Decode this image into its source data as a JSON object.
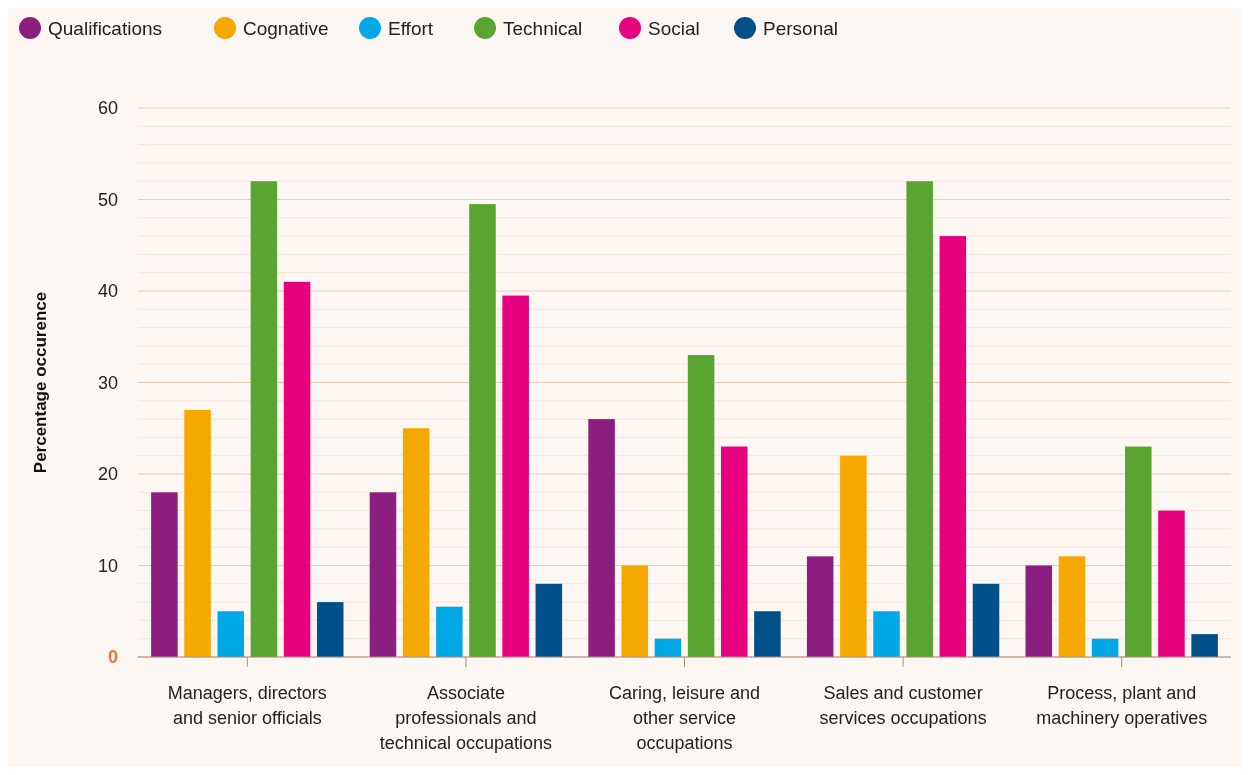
{
  "chart_data": {
    "type": "bar",
    "ylabel": "Percentage occurence",
    "categories": [
      "Managers, directors and senior officials",
      "Associate professionals and technical occupations",
      "Caring, leisure and other service occupations",
      "Sales and customer services occupations",
      "Process, plant and machinery operatives"
    ],
    "series": [
      {
        "name": "Qualifications",
        "color": "#8b1e7e",
        "values": [
          18,
          18,
          26,
          11,
          10
        ]
      },
      {
        "name": "Cognative",
        "color": "#f5a800",
        "values": [
          27,
          25,
          10,
          22,
          11
        ]
      },
      {
        "name": "Effort",
        "color": "#00a9e6",
        "values": [
          5,
          5.5,
          2,
          5,
          2
        ]
      },
      {
        "name": "Technical",
        "color": "#5aa532",
        "values": [
          52,
          49.5,
          33,
          52,
          23
        ]
      },
      {
        "name": "Social",
        "color": "#e6007e",
        "values": [
          41,
          39.5,
          23,
          46,
          16
        ]
      },
      {
        "name": "Personal",
        "color": "#00508a",
        "values": [
          6,
          8,
          5,
          8,
          2.5
        ]
      }
    ],
    "ylim": [
      0,
      60
    ],
    "yticks": [
      0,
      {
        "value": 2,
        "label": null
      },
      {
        "value": 4,
        "label": null
      },
      {
        "value": 6,
        "label": null
      },
      {
        "value": 8,
        "label": null
      },
      10,
      {
        "value": 12,
        "label": null
      },
      {
        "value": 14,
        "label": null
      },
      {
        "value": 16,
        "label": null
      },
      {
        "value": 18,
        "label": null
      },
      20,
      {
        "value": 22,
        "label": null
      },
      {
        "value": 24,
        "label": null
      },
      {
        "value": 26,
        "label": null
      },
      {
        "value": 28,
        "label": null
      },
      30,
      {
        "value": 32,
        "label": null
      },
      {
        "value": 34,
        "label": null
      },
      {
        "value": 36,
        "label": null
      },
      {
        "value": 38,
        "label": null
      },
      40,
      {
        "value": 42,
        "label": null
      },
      {
        "value": 44,
        "label": null
      },
      {
        "value": 46,
        "label": null
      },
      {
        "value": 48,
        "label": null
      },
      50,
      {
        "value": 52,
        "label": null
      },
      {
        "value": 54,
        "label": null
      },
      {
        "value": 56,
        "label": null
      },
      {
        "value": 58,
        "label": null
      },
      60
    ],
    "grid": true,
    "legend": "top left"
  }
}
